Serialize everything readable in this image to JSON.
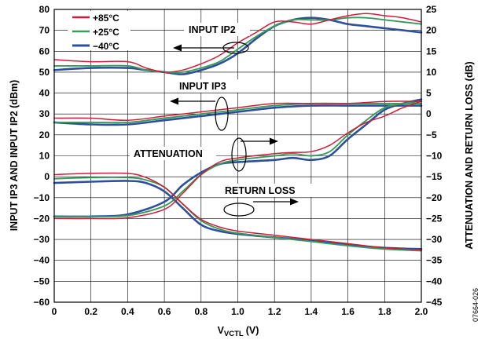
{
  "chart_data": {
    "type": "line",
    "xlabel": "V",
    "xlabel_sub": "VCTL",
    "xlabel_unit": "(V)",
    "ylabel_left": "INPUT IP3 AND INPUT IP2 (dBm)",
    "ylabel_right": "ATTENUATION AND RETURN LOSS (dB)",
    "xlim": [
      0,
      2.0
    ],
    "ylim_left": [
      -60,
      80
    ],
    "ylim_right": [
      -45,
      25
    ],
    "x_ticks": [
      "0",
      "0.2",
      "0.4",
      "0.6",
      "0.8",
      "1.0",
      "1.2",
      "1.4",
      "1.6",
      "1.8",
      "2.0"
    ],
    "y_ticks_left": [
      "80",
      "70",
      "60",
      "50",
      "40",
      "30",
      "20",
      "10",
      "0",
      "−10",
      "−20",
      "−30",
      "−40",
      "−50",
      "−60"
    ],
    "y_ticks_right": [
      "25",
      "20",
      "15",
      "10",
      "5",
      "0",
      "−5",
      "−10",
      "−15",
      "−20",
      "−25",
      "−30",
      "−35",
      "−40",
      "−45"
    ],
    "grid": true,
    "legend_position": "top-left",
    "legend": [
      {
        "label": "+85°C",
        "color": "#cc1f3a"
      },
      {
        "label": "+25°C",
        "color": "#3a9a5c"
      },
      {
        "label": "−40°C",
        "color": "#2e4f9b"
      }
    ],
    "annotations": [
      {
        "text": "INPUT IP2"
      },
      {
        "text": "INPUT IP3"
      },
      {
        "text": "ATTENUATION"
      },
      {
        "text": "RETURN LOSS"
      }
    ],
    "doc_id": "07664-026",
    "series": [
      {
        "name": "+85°C",
        "group": "INPUT IP2",
        "axis": "left",
        "x": [
          0,
          0.2,
          0.4,
          0.5,
          0.6,
          0.7,
          0.8,
          0.9,
          1.0,
          1.1,
          1.2,
          1.3,
          1.4,
          1.5,
          1.6,
          1.7,
          1.8,
          1.9,
          2.0
        ],
        "y": [
          56,
          55,
          55,
          52,
          50,
          51,
          54,
          58,
          64,
          69,
          74,
          74,
          73,
          75,
          77,
          78,
          77,
          76,
          74
        ]
      },
      {
        "name": "+25°C",
        "group": "INPUT IP2",
        "axis": "left",
        "x": [
          0,
          0.2,
          0.4,
          0.5,
          0.6,
          0.7,
          0.8,
          0.9,
          1.0,
          1.1,
          1.2,
          1.3,
          1.4,
          1.5,
          1.6,
          1.7,
          1.8,
          1.9,
          2.0
        ],
        "y": [
          53,
          53,
          53,
          51,
          50,
          50,
          52,
          55,
          61,
          67,
          72,
          75,
          75,
          75,
          76,
          76,
          75,
          74,
          73
        ]
      },
      {
        "name": "−40°C",
        "group": "INPUT IP2",
        "axis": "left",
        "x": [
          0,
          0.2,
          0.4,
          0.5,
          0.6,
          0.7,
          0.8,
          0.9,
          1.0,
          1.1,
          1.2,
          1.3,
          1.4,
          1.5,
          1.6,
          1.7,
          1.8,
          1.9,
          2.0
        ],
        "y": [
          51,
          52,
          52,
          51,
          50,
          49,
          51,
          54,
          59,
          66,
          72,
          75,
          76,
          75,
          73,
          72,
          71,
          70,
          69
        ]
      },
      {
        "name": "+85°C",
        "group": "INPUT IP3",
        "axis": "left",
        "x": [
          0,
          0.2,
          0.4,
          0.6,
          0.8,
          1.0,
          1.2,
          1.4,
          1.6,
          1.8,
          2.0
        ],
        "y": [
          28,
          28,
          27,
          29,
          31,
          33,
          35,
          35,
          35,
          36,
          36
        ]
      },
      {
        "name": "+25°C",
        "group": "INPUT IP3",
        "axis": "left",
        "x": [
          0,
          0.2,
          0.4,
          0.6,
          0.8,
          1.0,
          1.2,
          1.4,
          1.6,
          1.8,
          2.0
        ],
        "y": [
          26,
          26,
          26,
          28,
          30,
          32,
          34,
          35,
          35,
          35,
          35
        ]
      },
      {
        "name": "−40°C",
        "group": "INPUT IP3",
        "axis": "left",
        "x": [
          0,
          0.2,
          0.4,
          0.6,
          0.8,
          1.0,
          1.2,
          1.4,
          1.6,
          1.8,
          2.0
        ],
        "y": [
          26,
          25,
          25,
          27,
          29,
          31,
          33,
          34,
          34,
          34,
          34
        ]
      },
      {
        "name": "+85°C",
        "group": "ATTENUATION",
        "axis": "right",
        "x": [
          0,
          0.2,
          0.4,
          0.5,
          0.6,
          0.7,
          0.8,
          0.9,
          1.0,
          1.2,
          1.4,
          1.6,
          1.8,
          2.0
        ],
        "y": [
          -14.5,
          -14.2,
          -14.2,
          -15.2,
          -17.5,
          -21.5,
          -25.2,
          -27,
          -28,
          -29,
          -30,
          -31,
          -32,
          -32.5
        ],
        "y_right": [
          -14.5,
          -14.2,
          -14.2,
          -15.2,
          -17.5,
          -21.5,
          -25.2,
          -27,
          -28,
          -29,
          -30,
          -31,
          -32,
          -32.5
        ]
      },
      {
        "name": "+25°C",
        "group": "ATTENUATION",
        "axis": "right",
        "x": [
          0,
          0.2,
          0.4,
          0.5,
          0.6,
          0.7,
          0.8,
          0.9,
          1.0,
          1.2,
          1.4,
          1.6,
          1.8,
          2.0
        ],
        "y": [
          -15.5,
          -15.2,
          -15.2,
          -15.8,
          -17.5,
          -21.5,
          -25.5,
          -27.5,
          -28.5,
          -29.5,
          -30.5,
          -31.5,
          -32.3,
          -32.7
        ]
      },
      {
        "name": "−40°C",
        "group": "ATTENUATION",
        "axis": "right",
        "x": [
          0,
          0.2,
          0.4,
          0.5,
          0.6,
          0.7,
          0.8,
          0.9,
          1.0,
          1.2,
          1.4,
          1.6,
          1.8,
          2.0
        ],
        "y": [
          -16.5,
          -16.2,
          -16,
          -16.5,
          -18.5,
          -22.5,
          -26.5,
          -28,
          -28.7,
          -29.5,
          -30.3,
          -31.3,
          -32,
          -32.3
        ]
      },
      {
        "name": "+85°C",
        "group": "RETURN LOSS",
        "axis": "right",
        "x": [
          0,
          0.2,
          0.4,
          0.6,
          0.7,
          0.8,
          0.9,
          1.0,
          1.2,
          1.3,
          1.4,
          1.5,
          1.6,
          1.7,
          1.8,
          1.9,
          2.0
        ],
        "y": [
          -25,
          -25,
          -24.8,
          -22.8,
          -19,
          -14.5,
          -11.5,
          -10.5,
          -9.5,
          -9.2,
          -9,
          -7.5,
          -4.5,
          -2,
          -0.5,
          1.5,
          3
        ]
      },
      {
        "name": "+25°C",
        "group": "RETURN LOSS",
        "axis": "right",
        "x": [
          0,
          0.2,
          0.4,
          0.6,
          0.7,
          0.8,
          0.9,
          1.0,
          1.2,
          1.3,
          1.4,
          1.5,
          1.6,
          1.7,
          1.8,
          1.9,
          2.0
        ],
        "y": [
          -24.5,
          -24.5,
          -24.3,
          -22,
          -18.5,
          -14.5,
          -12,
          -11,
          -10,
          -9.5,
          -10,
          -9,
          -5,
          -1.5,
          1.5,
          2.5,
          3
        ]
      },
      {
        "name": "−40°C",
        "group": "RETURN LOSS",
        "axis": "right",
        "x": [
          0,
          0.2,
          0.4,
          0.6,
          0.7,
          0.8,
          0.9,
          1.0,
          1.2,
          1.3,
          1.4,
          1.5,
          1.6,
          1.7,
          1.8,
          1.9,
          2.0
        ],
        "y": [
          -24.5,
          -24.5,
          -24,
          -21,
          -17,
          -14,
          -12,
          -11.5,
          -11,
          -10.5,
          -11,
          -10,
          -6,
          -2.5,
          1,
          2.5,
          3.5
        ]
      }
    ]
  }
}
